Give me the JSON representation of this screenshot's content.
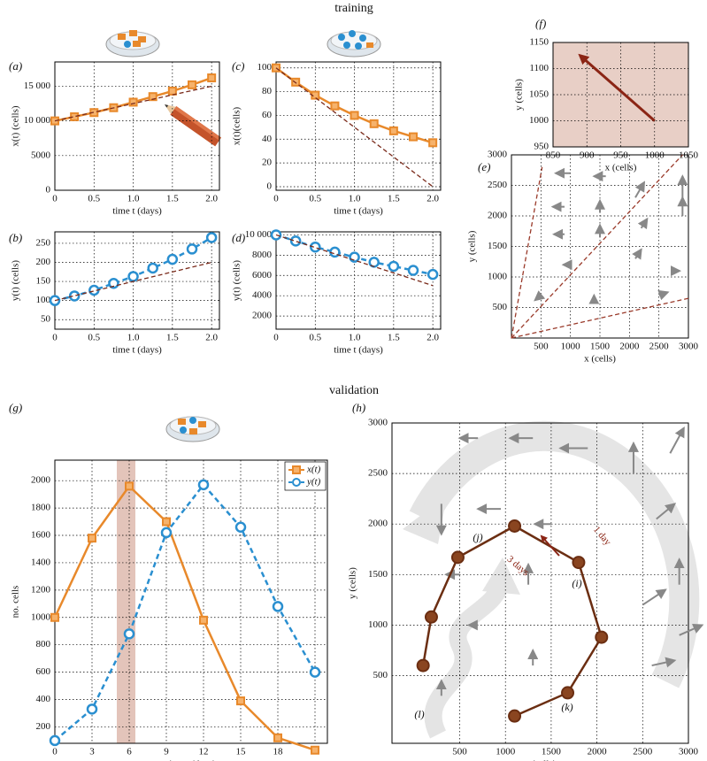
{
  "headings": [
    "training",
    "validation"
  ],
  "chart_data": [
    {
      "type": "line",
      "panel": "(a)",
      "xlabel": "time t (days)",
      "ylabel": "x(t) (cells)",
      "x": [
        0,
        0.25,
        0.5,
        0.75,
        1,
        1.25,
        1.5,
        1.75,
        2
      ],
      "xlim": [
        0,
        2.1
      ],
      "xticks": [
        0,
        0.5,
        {
          "value": 1,
          "label": "1.0"
        },
        1.5,
        {
          "value": 2,
          "label": "2.0"
        }
      ],
      "ylim": [
        0,
        18500
      ],
      "yticks": [
        0,
        5000,
        {
          "value": 10000,
          "label": "10 000"
        },
        {
          "value": 15000,
          "label": "15 000"
        }
      ],
      "grid": true,
      "series": [
        {
          "color": "#e8892b",
          "marker": "square",
          "values": [
            10000,
            10600,
            11200,
            11900,
            12700,
            13500,
            14300,
            15200,
            16200
          ]
        },
        {
          "color": "#7a2a1a",
          "dash": true,
          "x": [
            0,
            2
          ],
          "values": [
            10000,
            15000
          ]
        }
      ]
    },
    {
      "type": "line",
      "panel": "(b)",
      "xlabel": "time t (days)",
      "ylabel": "y(t) (cells)",
      "x": [
        0,
        0.25,
        0.5,
        0.75,
        1,
        1.25,
        1.5,
        1.75,
        2
      ],
      "xlim": [
        0,
        2.1
      ],
      "xticks": [
        0,
        0.5,
        {
          "value": 1,
          "label": "1.0"
        },
        1.5,
        {
          "value": 2,
          "label": "2.0"
        }
      ],
      "ylim": [
        25,
        280
      ],
      "yticks": [
        50,
        100,
        150,
        200,
        250
      ],
      "grid": true,
      "series": [
        {
          "color": "#2a8fd0",
          "marker": "circle",
          "dash": true,
          "values": [
            100,
            112,
            127,
            145,
            163,
            185,
            208,
            235,
            265
          ]
        },
        {
          "color": "#7a2a1a",
          "dash": true,
          "x": [
            0,
            2
          ],
          "values": [
            100,
            200
          ]
        }
      ]
    },
    {
      "type": "line",
      "panel": "(c)",
      "xlabel": "time t (days)",
      "ylabel": "x(t)(cells)",
      "x": [
        0,
        0.25,
        0.5,
        0.75,
        1,
        1.25,
        1.5,
        1.75,
        2
      ],
      "xlim": [
        0,
        2.1
      ],
      "xticks": [
        0,
        0.5,
        {
          "value": 1,
          "label": "1.0"
        },
        1.5,
        {
          "value": 2,
          "label": "2.0"
        }
      ],
      "ylim": [
        -3,
        105
      ],
      "yticks": [
        0,
        20,
        40,
        60,
        80,
        100
      ],
      "grid": true,
      "series": [
        {
          "color": "#e8892b",
          "marker": "square",
          "values": [
            100,
            88,
            77,
            68,
            60,
            53,
            47,
            42,
            37
          ]
        },
        {
          "color": "#7a2a1a",
          "dash": true,
          "x": [
            0,
            2
          ],
          "values": [
            100,
            0
          ]
        }
      ]
    },
    {
      "type": "line",
      "panel": "(d)",
      "xlabel": "time t (days)",
      "ylabel": "y(t) (cells)",
      "x": [
        0,
        0.25,
        0.5,
        0.75,
        1,
        1.25,
        1.5,
        1.75,
        2
      ],
      "xlim": [
        0,
        2.1
      ],
      "xticks": [
        0,
        0.5,
        {
          "value": 1,
          "label": "1.0"
        },
        1.5,
        {
          "value": 2,
          "label": "2.0"
        }
      ],
      "ylim": [
        700,
        10300
      ],
      "yticks": [
        2000,
        4000,
        6000,
        8000,
        {
          "value": 10000,
          "label": "10 000"
        }
      ],
      "grid": true,
      "series": [
        {
          "color": "#2a8fd0",
          "marker": "circle",
          "dash": true,
          "values": [
            10000,
            9400,
            8800,
            8300,
            7800,
            7300,
            6900,
            6500,
            6100
          ]
        },
        {
          "color": "#7a2a1a",
          "dash": true,
          "x": [
            0,
            2
          ],
          "values": [
            10000,
            5000
          ]
        }
      ]
    },
    {
      "type": "vector-field",
      "panel": "(e)",
      "xlabel": "x (cells)",
      "ylabel": "y (cells)",
      "xlim": [
        0,
        3000
      ],
      "xticks": [
        500,
        1000,
        1500,
        2000,
        2500,
        3000
      ],
      "ylim": [
        0,
        3000
      ],
      "yticks": [
        500,
        1000,
        1500,
        2000,
        2500,
        3000
      ],
      "grid": true,
      "series": [
        {
          "color": "#9a3a2a",
          "dash": true,
          "x": [
            0,
            520
          ],
          "values": [
            0,
            2800
          ]
        },
        {
          "color": "#9a3a2a",
          "dash": true,
          "x": [
            0,
            2900
          ],
          "values": [
            0,
            3000
          ]
        },
        {
          "color": "#9a3a2a",
          "dash": true,
          "x": [
            0,
            3000
          ],
          "values": [
            0,
            650
          ]
        }
      ],
      "field": {
        "x": [
          1000,
          1600,
          900,
          1500,
          2100,
          2900,
          900,
          1500,
          2200,
          2900,
          1000,
          2100,
          2700,
          1400,
          2500,
          500
        ],
        "y": [
          2700,
          2650,
          2150,
          2050,
          2300,
          2300,
          1700,
          1650,
          1800,
          2000,
          1200,
          1300,
          1100,
          600,
          700,
          700
        ],
        "u": [
          -250,
          -200,
          -200,
          0,
          150,
          0,
          -180,
          0,
          100,
          0,
          -120,
          100,
          150,
          0,
          150,
          -100
        ],
        "v": [
          0,
          0,
          0,
          200,
          250,
          350,
          0,
          200,
          150,
          300,
          0,
          150,
          0,
          100,
          50,
          -80
        ]
      }
    },
    {
      "type": "vector-field",
      "panel": "(f)",
      "xlabel": "x (cells)",
      "ylabel": "y (cells)",
      "xlim": [
        850,
        1050
      ],
      "xticks": [
        850,
        900,
        950,
        1000,
        1050
      ],
      "ylim": [
        950,
        1150
      ],
      "yticks": [
        950,
        1000,
        1050,
        1100,
        1150
      ],
      "grid": true,
      "background": "#e8cfc6",
      "series": [
        {
          "color": "#8b2515",
          "arrow": true,
          "x": [
            1000,
            890
          ],
          "values": [
            1000,
            1125
          ]
        }
      ]
    },
    {
      "type": "line",
      "panel": "(g)",
      "xlabel": "time t (days)",
      "ylabel": "no. cells",
      "x": [
        0,
        3,
        6,
        9,
        12,
        15,
        18,
        21
      ],
      "xlim": [
        0,
        22
      ],
      "xticks": [
        0,
        3,
        6,
        9,
        12,
        15,
        18,
        21
      ],
      "ylim": [
        80,
        2150
      ],
      "yticks": [
        200,
        400,
        600,
        800,
        1000,
        1200,
        1400,
        1600,
        1800,
        2000
      ],
      "grid": true,
      "legend": "upper right",
      "highlight_x": [
        5,
        6.5
      ],
      "series": [
        {
          "name": "x(t)",
          "color": "#e8892b",
          "marker": "square",
          "values": [
            1000,
            1580,
            1960,
            1700,
            980,
            390,
            120,
            30
          ]
        },
        {
          "name": "y(t)",
          "color": "#2a8fd0",
          "marker": "circle",
          "dash": true,
          "values": [
            100,
            330,
            880,
            1620,
            1970,
            1660,
            1080,
            600
          ]
        }
      ]
    },
    {
      "type": "vector-field",
      "panel": "(h)",
      "xlabel": "x (cells)",
      "ylabel": "y (cells)",
      "xlim": [
        -240,
        3000
      ],
      "xticks": [
        500,
        1000,
        1500,
        2000,
        2500,
        3000
      ],
      "ylim": [
        -170,
        3000
      ],
      "yticks": [
        500,
        1000,
        1500,
        2000,
        2500,
        3000
      ],
      "grid": true,
      "series": [
        {
          "color": "#6b2e12",
          "marker": "circle",
          "x": [
            1100,
            1680,
            2050,
            1800,
            1100,
            480,
            190,
            100
          ],
          "values": [
            100,
            330,
            880,
            1620,
            1980,
            1670,
            1080,
            600
          ]
        }
      ],
      "field": {
        "x": [
          700,
          1300,
          1900,
          2400,
          2800,
          300,
          950,
          1500,
          2650,
          2900,
          500,
          1250,
          2500,
          2900,
          700,
          1300,
          2600,
          300
        ],
        "y": [
          2850,
          2850,
          2750,
          2500,
          2700,
          2200,
          2150,
          2000,
          2050,
          1400,
          1500,
          1400,
          1200,
          900,
          1000,
          600,
          600,
          300
        ],
        "u": [
          -200,
          -250,
          -300,
          0,
          150,
          0,
          -250,
          -180,
          200,
          0,
          -150,
          0,
          250,
          250,
          -100,
          0,
          250,
          0
        ],
        "v": [
          0,
          0,
          0,
          300,
          250,
          -300,
          0,
          0,
          150,
          250,
          0,
          200,
          150,
          100,
          0,
          150,
          50,
          150
        ]
      },
      "annotations": [
        "(i)",
        "(j)",
        "(k)",
        "(l)",
        "1 day",
        "3 days"
      ]
    }
  ]
}
